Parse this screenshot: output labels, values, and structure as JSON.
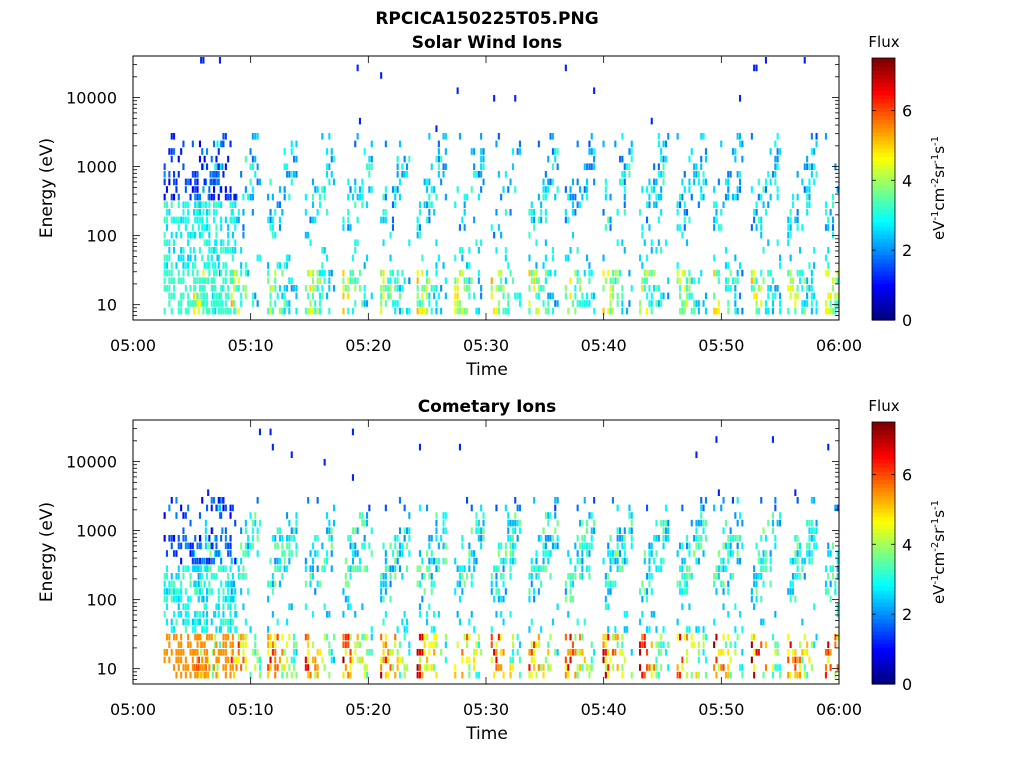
{
  "figure": {
    "title": "RPCICA150225T05.PNG"
  },
  "chart_data": [
    {
      "type": "heatmap",
      "title": "Solar Wind Ions",
      "xlabel": "Time",
      "ylabel": "Energy (eV)",
      "x_ticks": [
        "05:00",
        "05:10",
        "05:20",
        "05:30",
        "05:40",
        "05:50",
        "06:00"
      ],
      "xlim": [
        "05:00",
        "06:00"
      ],
      "y_scale": "log",
      "y_ticks": [
        10,
        100,
        1000,
        10000
      ],
      "y_tick_labels": [
        "10",
        "100",
        "1000",
        "10000"
      ],
      "ylim": [
        6,
        40000
      ],
      "colorbar": {
        "title": "Flux",
        "label": "eV-1cm-2sr-1s-1",
        "ticks": [
          0,
          2,
          4,
          6
        ],
        "range": [
          0,
          7.5
        ],
        "colormap": "jet"
      },
      "cycle_start_minutes": [
        5.1,
        8.3,
        11.4,
        14.6,
        17.8,
        21.0,
        24.1,
        27.3,
        30.4,
        33.6,
        36.7,
        39.9,
        43.0,
        46.2,
        49.3,
        52.5,
        55.6,
        58.8
      ],
      "typical_flux_at_10eV": 4.5,
      "typical_flux_at_100_1000eV": 2.8
    },
    {
      "type": "heatmap",
      "title": "Cometary Ions",
      "xlabel": "Time",
      "ylabel": "Energy (eV)",
      "x_ticks": [
        "05:00",
        "05:10",
        "05:20",
        "05:30",
        "05:40",
        "05:50",
        "06:00"
      ],
      "xlim": [
        "05:00",
        "06:00"
      ],
      "y_scale": "log",
      "y_ticks": [
        10,
        100,
        1000,
        10000
      ],
      "y_tick_labels": [
        "10",
        "100",
        "1000",
        "10000"
      ],
      "ylim": [
        6,
        40000
      ],
      "colorbar": {
        "title": "Flux",
        "label": "eV-1cm-2sr-1s-1",
        "ticks": [
          0,
          2,
          4,
          6
        ],
        "range": [
          0,
          7.5
        ],
        "colormap": "jet"
      },
      "cycle_start_minutes": [
        5.1,
        8.3,
        11.4,
        14.6,
        17.8,
        21.0,
        24.1,
        27.3,
        30.4,
        33.6,
        36.7,
        39.9,
        43.0,
        46.2,
        49.3,
        52.5,
        55.6,
        58.8
      ],
      "typical_flux_at_10eV": 6.2,
      "typical_flux_at_100_1000eV": 3.2
    }
  ]
}
